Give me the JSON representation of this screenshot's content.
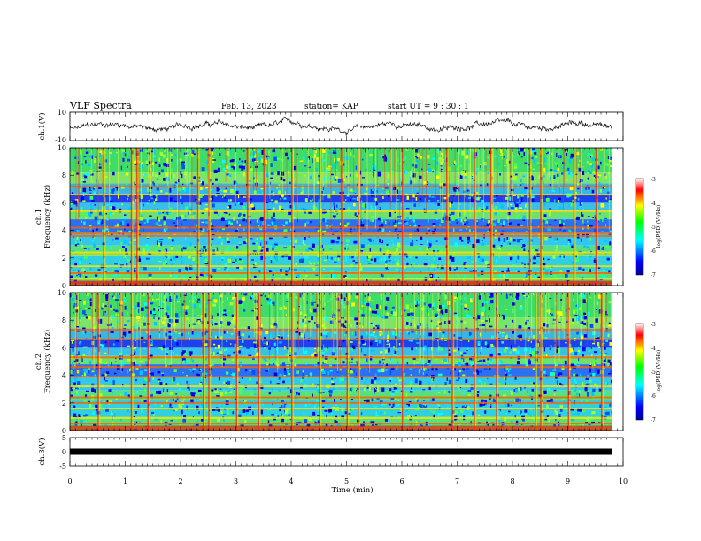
{
  "header": {
    "title": "VLF Spectra",
    "date": "Feb. 13, 2023",
    "station": "station= KAP",
    "start_ut": "start  UT  =   9  : 30 : 1"
  },
  "chart_data": [
    {
      "type": "line",
      "ylabel": "ch.1(V)",
      "ylim": [
        -10,
        10
      ],
      "y_ticks": [
        "10",
        "-10"
      ],
      "xlim": [
        0,
        10
      ],
      "description_of_trace": "noisy waveform fluctuating around 0 V",
      "trace_color": "#000000"
    },
    {
      "type": "heatmap",
      "ylabel_line1": "ch.1",
      "ylabel_line2": "Frequency  (kHz)",
      "ylim": [
        0,
        10
      ],
      "y_ticks": [
        "0",
        "2",
        "4",
        "6",
        "8",
        "10"
      ],
      "xlim": [
        0,
        9.8
      ],
      "colorbar": {
        "label": "log(PSD)(V²/Hz)",
        "range": [
          -7,
          -3
        ],
        "ticks": [
          "-3",
          "-4",
          "-5",
          "-6",
          "-7"
        ],
        "colors": [
          "#00008f",
          "#0000ff",
          "#00ffff",
          "#00ff00",
          "#ffff00",
          "#ff0000",
          "#ffffff"
        ]
      },
      "bands_khz": [
        0.2,
        0.5,
        0.9,
        1.4,
        2.2,
        2.4,
        3.6,
        3.8,
        4.2,
        5.4,
        6.6,
        7.2
      ],
      "spike_times_min": [
        0.6,
        1.1,
        1.2,
        2.3,
        2.5,
        3.2,
        3.5,
        4.0,
        4.5,
        4.9,
        5.2,
        6.0,
        6.8,
        7.3,
        7.6,
        8.3,
        8.5,
        9.1,
        9.5
      ]
    },
    {
      "type": "heatmap",
      "ylabel_line1": "ch.2",
      "ylabel_line2": "Frequency  (kHz)",
      "ylim": [
        0,
        10
      ],
      "y_ticks": [
        "0",
        "2",
        "4",
        "6",
        "8",
        "10"
      ],
      "xlim": [
        0,
        9.8
      ],
      "colorbar": {
        "label": "log(PSD)(V²/Hz)",
        "range": [
          -7,
          -3
        ],
        "ticks": [
          "-3",
          "-4",
          "-5",
          "-6",
          "-7"
        ]
      },
      "bands_khz": [
        0.2,
        0.5,
        0.9,
        1.6,
        2.0,
        2.4,
        3.2,
        3.9,
        4.6,
        5.3,
        6.6,
        7.3
      ],
      "spike_times_min": [
        0.5,
        1.1,
        1.4,
        2.4,
        2.5,
        3.0,
        3.4,
        4.0,
        4.5,
        5.0,
        5.2,
        6.0,
        6.9,
        7.3,
        7.7,
        8.4,
        8.5,
        9.0,
        9.6
      ]
    },
    {
      "type": "line",
      "ylabel": "ch.3(V)",
      "ylim": [
        -5,
        5
      ],
      "y_ticks": [
        "5",
        "0",
        "-5"
      ],
      "xlim": [
        0,
        10
      ],
      "constant_value": 0,
      "trace_color": "#000000"
    }
  ],
  "x_axis": {
    "label": "Time  (min)",
    "ticks": [
      "0",
      "1",
      "2",
      "3",
      "4",
      "5",
      "6",
      "7",
      "8",
      "9",
      "10"
    ],
    "range": [
      0,
      10
    ]
  }
}
